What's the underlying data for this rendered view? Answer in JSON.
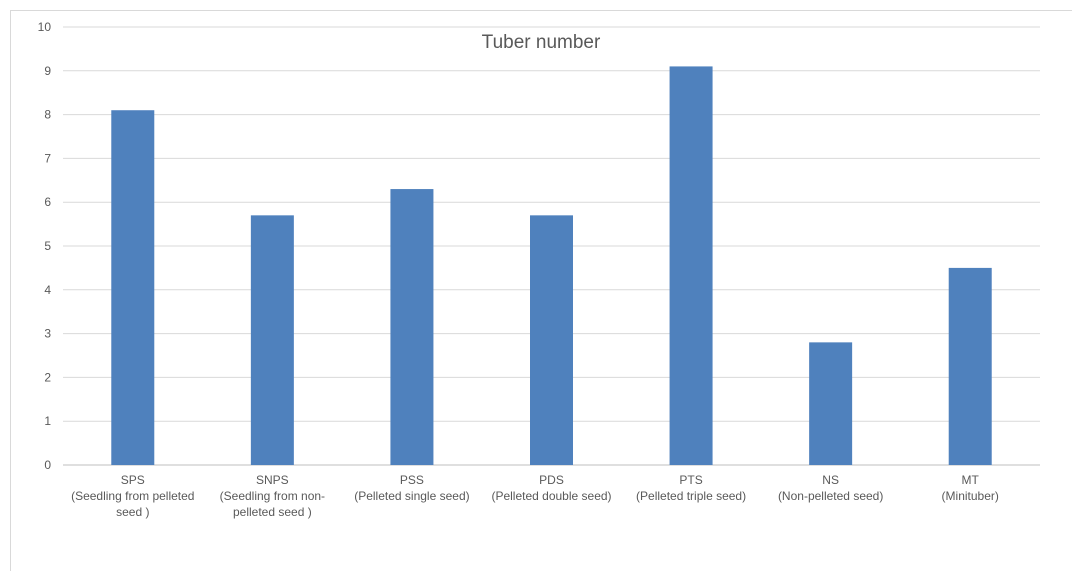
{
  "chart_data": {
    "type": "bar",
    "title": "Tuber number",
    "xlabel": "",
    "ylabel": "",
    "ylim": [
      0,
      10
    ],
    "yticks": [
      "0",
      "1",
      "2",
      "3",
      "4",
      "5",
      "6",
      "7",
      "8",
      "9",
      "10"
    ],
    "grid": true,
    "legend": "none",
    "bar_color": "#4f81bd",
    "categories": [
      [
        "SPS",
        "(Seedling from pelleted",
        "seed )"
      ],
      [
        "SNPS",
        "(Seedling from non-",
        "pelleted seed )"
      ],
      [
        "PSS",
        "(Pelleted single seed)"
      ],
      [
        "PDS",
        "(Pelleted double seed)"
      ],
      [
        "PTS",
        "(Pelleted triple seed)"
      ],
      [
        "NS",
        "(Non-pelleted seed)"
      ],
      [
        "MT",
        "(Minituber)"
      ]
    ],
    "values": [
      8.1,
      5.7,
      6.3,
      5.7,
      9.1,
      2.8,
      4.5
    ]
  }
}
